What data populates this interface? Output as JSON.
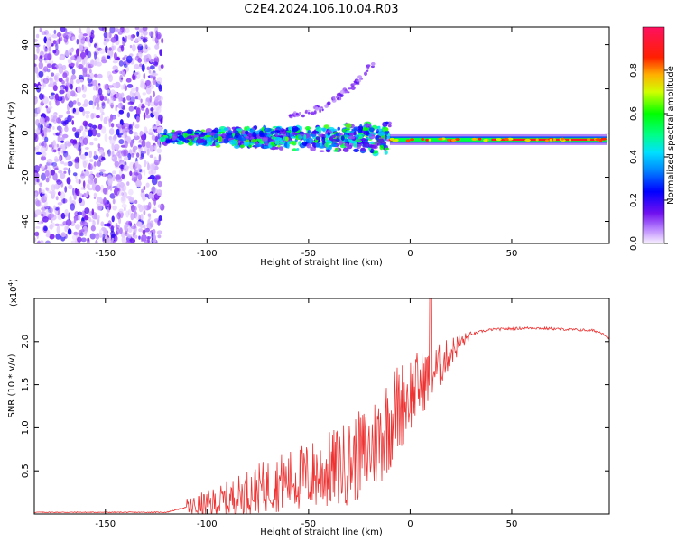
{
  "figure": {
    "title": "C2E4.2024.106.10.04.R03"
  },
  "chart_data": [
    {
      "type": "heatmap",
      "xlabel": "Height of straight line (km)",
      "ylabel": "Frequency (Hz)",
      "xlim": [
        -185,
        98
      ],
      "ylim": [
        -50,
        48
      ],
      "xticks": [
        -150,
        -100,
        -50,
        0,
        50
      ],
      "yticks": [
        -40,
        -20,
        0,
        20,
        40
      ],
      "colorbar": {
        "label": "Normalized spectral amplitude",
        "range": [
          0,
          1
        ],
        "ticks": [
          0.0,
          0.2,
          0.4,
          0.6,
          0.8
        ]
      },
      "regions": [
        {
          "name": "noise",
          "x": [
            -185,
            -122
          ],
          "freq": [
            -50,
            48
          ],
          "amplitude": 0.1
        },
        {
          "name": "turbulent-band",
          "x": [
            -122,
            -10
          ],
          "freq_center": -2,
          "freq_halfwidth": 8,
          "amplitude": 0.4
        },
        {
          "name": "rising-harmonic",
          "x": [
            -60,
            -18
          ],
          "freq": [
            8,
            32
          ],
          "amplitude": 0.1
        },
        {
          "name": "steady-band",
          "x": [
            -10,
            97
          ],
          "freq": -3,
          "amplitude": 0.9
        }
      ],
      "colors": {
        "low": "#d8b8f8",
        "mid": "#00d8ff",
        "high": "#ff0044"
      }
    },
    {
      "type": "line",
      "xlabel": "Height of straight line (km)",
      "ylabel": "SNR (10 * v/v)",
      "multiplier": "(x10",
      "multiplier_exp": "4",
      "xlim": [
        -185,
        98
      ],
      "ylim": [
        0,
        2.5
      ],
      "xticks": [
        -150,
        -100,
        -50,
        0,
        50
      ],
      "yticks": [
        0.5,
        1.0,
        1.5,
        2.0
      ],
      "series": [
        {
          "name": "SNR",
          "color": "#ee3333",
          "x": [
            -185,
            -120,
            -110,
            -100,
            -90,
            -80,
            -70,
            -60,
            -50,
            -40,
            -30,
            -20,
            -15,
            -10,
            -5,
            0,
            5,
            10,
            15,
            20,
            25,
            30,
            35,
            40,
            50,
            60,
            70,
            80,
            90,
            95,
            97
          ],
          "y": [
            0.02,
            0.02,
            0.08,
            0.12,
            0.18,
            0.28,
            0.36,
            0.42,
            0.48,
            0.55,
            0.65,
            0.8,
            0.95,
            1.15,
            1.3,
            1.45,
            1.55,
            1.65,
            1.75,
            1.9,
            2.0,
            2.08,
            2.12,
            2.14,
            2.15,
            2.16,
            2.15,
            2.14,
            2.13,
            2.1,
            2.05
          ]
        }
      ]
    }
  ]
}
